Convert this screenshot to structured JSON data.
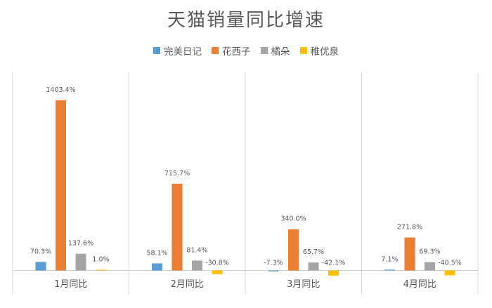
{
  "chart_data": {
    "type": "bar",
    "title": "天猫销量同比增速",
    "categories": [
      "1月同比",
      "2月同比",
      "3月同比",
      "4月同比"
    ],
    "series": [
      {
        "name": "完美日记",
        "color": "#5B9BD5",
        "values": [
          70.3,
          58.1,
          -7.3,
          7.1
        ],
        "labels": [
          "70.3%",
          "58.1%",
          "-7.3%",
          "7.1%"
        ]
      },
      {
        "name": "花西子",
        "color": "#ED7D31",
        "values": [
          1403.4,
          715.7,
          340.0,
          271.8
        ],
        "labels": [
          "1403.4%",
          "715.7%",
          "340.0%",
          "271.8%"
        ]
      },
      {
        "name": "橘朵",
        "color": "#A5A5A5",
        "values": [
          137.6,
          81.4,
          65.7,
          69.3
        ],
        "labels": [
          "137.6%",
          "81.4%",
          "65.7%",
          "69.3%"
        ]
      },
      {
        "name": "稚优泉",
        "color": "#FFC000",
        "values": [
          1.0,
          -30.8,
          -42.1,
          -40.5
        ],
        "labels": [
          "1.0%",
          "-30.8%",
          "-42.1%",
          "-40.5%"
        ]
      }
    ],
    "legend_position": "top",
    "grid": false
  }
}
